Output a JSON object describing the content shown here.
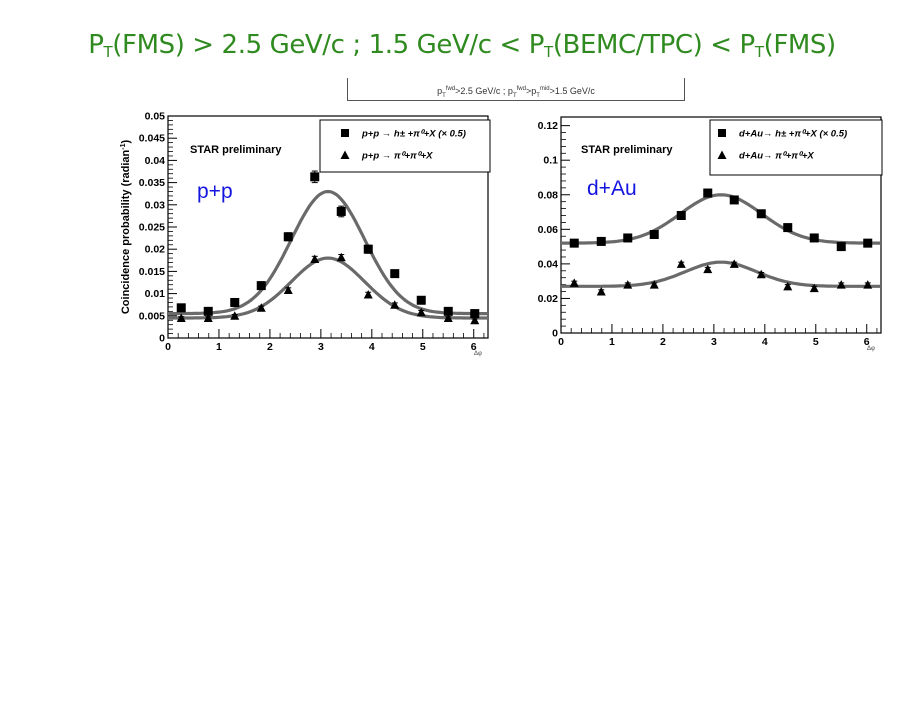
{
  "title": {
    "p1": "P",
    "s1": "T",
    "p2": "(FMS) > 2.5 GeV/c ; 1.5 GeV/c < P",
    "s2": "T",
    "p3": "(BEMC/TPC) < P",
    "s3": "T",
    "p4": "(FMS)"
  },
  "cut_label": {
    "p": "p",
    "sub1": "T",
    "sup1": "fwd",
    "t1": ">2.5 GeV/c ; p",
    "sub2": "T",
    "sup2": "fwd",
    "t2": ">p",
    "sub3": "T",
    "sup3": "mid",
    "t3": ">1.5 GeV/c"
  },
  "colors": {
    "title": "#2f8a1f",
    "system_label": "#1515e0",
    "fit": "#6a6a6a",
    "marker": "#000000"
  },
  "chart_data": [
    {
      "type": "scatter",
      "system_label": "p+p",
      "annotation": "STAR preliminary",
      "ylabel": "Coincidence probability (radian",
      "ylabel_sup": "-1",
      "ylabel_tail": ")",
      "xlabel": "Δφ",
      "xlim": [
        0,
        6.28
      ],
      "ylim": [
        0,
        0.05
      ],
      "yticks": [
        0,
        0.005,
        0.01,
        0.015,
        0.02,
        0.025,
        0.03,
        0.035,
        0.04,
        0.045,
        0.05
      ],
      "ytick_labels": [
        "0",
        "0.005",
        "0.01",
        "0.015",
        "0.02",
        "0.025",
        "0.03",
        "0.035",
        "0.04",
        "0.045",
        "0.05"
      ],
      "xticks": [
        0,
        1,
        2,
        3,
        4,
        5,
        6
      ],
      "xtick_labels": [
        "0",
        "1",
        "2",
        "3",
        "4",
        "5",
        "6"
      ],
      "legend_position": "top-right",
      "series": [
        {
          "name": "p+p → h± +π⁰+X (× 0.5)",
          "marker": "square",
          "x": [
            0.26,
            0.79,
            1.31,
            1.83,
            2.36,
            2.88,
            3.4,
            3.93,
            4.45,
            4.97,
            5.5,
            6.02
          ],
          "y": [
            0.0068,
            0.006,
            0.008,
            0.0118,
            0.0228,
            0.0363,
            0.0285,
            0.02,
            0.0145,
            0.0085,
            0.006,
            0.0055
          ],
          "yerr": [
            0.0006,
            0.0005,
            0.0006,
            0.0007,
            0.0009,
            0.0013,
            0.0012,
            0.0009,
            0.0008,
            0.0006,
            0.0005,
            0.0005
          ],
          "fit": {
            "base": 0.0055,
            "amp": 0.0275,
            "mu": 3.14,
            "sigma": 0.72
          }
        },
        {
          "name": "p+p → π⁰+π⁰+X",
          "marker": "triangle",
          "x": [
            0.26,
            0.79,
            1.31,
            1.83,
            2.36,
            2.88,
            3.4,
            3.93,
            4.45,
            4.97,
            5.5,
            6.02
          ],
          "y": [
            0.0045,
            0.0045,
            0.005,
            0.0068,
            0.0108,
            0.0178,
            0.0182,
            0.0098,
            0.0075,
            0.0058,
            0.0045,
            0.004
          ],
          "yerr": [
            0.0003,
            0.0003,
            0.0003,
            0.0004,
            0.0005,
            0.0006,
            0.0006,
            0.0005,
            0.0004,
            0.0004,
            0.0003,
            0.0003
          ],
          "fit": {
            "base": 0.0045,
            "amp": 0.0135,
            "mu": 3.14,
            "sigma": 0.72
          }
        }
      ]
    },
    {
      "type": "scatter",
      "system_label": "d+Au",
      "annotation": "STAR preliminary",
      "ylabel": "",
      "xlabel": "Δφ",
      "xlim": [
        0,
        6.28
      ],
      "ylim": [
        0,
        0.125
      ],
      "yticks": [
        0,
        0.02,
        0.04,
        0.06,
        0.08,
        0.1,
        0.12
      ],
      "ytick_labels": [
        "0",
        "0.02",
        "0.04",
        "0.06",
        "0.08",
        "0.1",
        "0.12"
      ],
      "xticks": [
        0,
        1,
        2,
        3,
        4,
        5,
        6
      ],
      "xtick_labels": [
        "0",
        "1",
        "2",
        "3",
        "4",
        "5",
        "6"
      ],
      "legend_position": "top-right",
      "series": [
        {
          "name": "d+Au→ h± +π⁰+X (× 0.5)",
          "marker": "square",
          "x": [
            0.26,
            0.79,
            1.31,
            1.83,
            2.36,
            2.88,
            3.4,
            3.93,
            4.45,
            4.97,
            5.5,
            6.02
          ],
          "y": [
            0.052,
            0.053,
            0.055,
            0.057,
            0.068,
            0.081,
            0.077,
            0.069,
            0.061,
            0.055,
            0.05,
            0.052
          ],
          "yerr": [
            0.0012,
            0.0012,
            0.0012,
            0.0012,
            0.0014,
            0.0015,
            0.0015,
            0.0014,
            0.0013,
            0.0012,
            0.0012,
            0.0012
          ],
          "fit": {
            "base": 0.052,
            "amp": 0.028,
            "mu": 3.14,
            "sigma": 0.8
          }
        },
        {
          "name": "d+Au→ π⁰+π⁰+X",
          "marker": "triangle",
          "x": [
            0.26,
            0.79,
            1.31,
            1.83,
            2.36,
            2.88,
            3.4,
            3.93,
            4.45,
            4.97,
            5.5,
            6.02
          ],
          "y": [
            0.029,
            0.024,
            0.028,
            0.028,
            0.04,
            0.037,
            0.04,
            0.034,
            0.027,
            0.026,
            0.028,
            0.028
          ],
          "yerr": [
            0.001,
            0.001,
            0.001,
            0.001,
            0.001,
            0.001,
            0.001,
            0.001,
            0.001,
            0.001,
            0.001,
            0.001
          ],
          "fit": {
            "base": 0.027,
            "amp": 0.014,
            "mu": 3.14,
            "sigma": 0.7
          }
        }
      ]
    }
  ]
}
